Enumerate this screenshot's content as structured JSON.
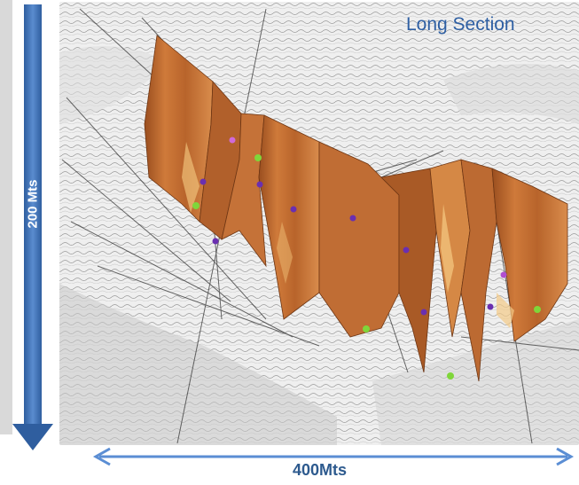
{
  "title": "Long Section",
  "vertical_scale_label": "200 Mts",
  "horizontal_scale_label": "400Mts",
  "colors": {
    "surface": "#c26f33",
    "surface_dark": "#7a3d17",
    "surface_light": "#e6a867",
    "arrow_blue": "#4a7cc0",
    "label_blue": "#2d5a8e",
    "terrain": "#eeeeee",
    "marker_green": "#7fd63a",
    "marker_purple": "#6a2fb0"
  }
}
